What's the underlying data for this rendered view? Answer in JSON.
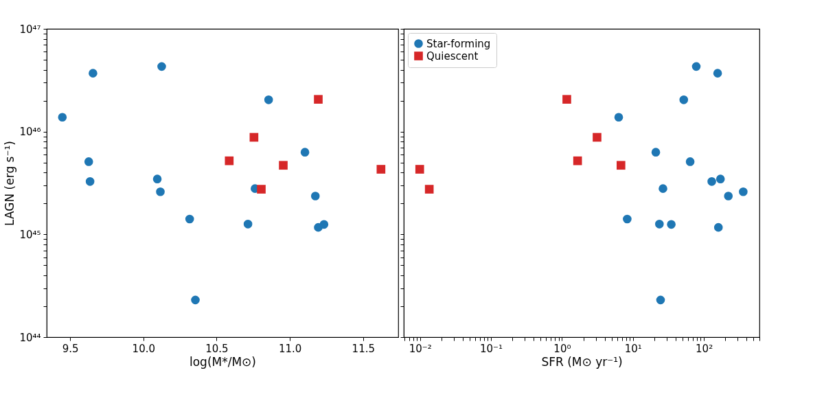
{
  "chart_data": [
    {
      "type": "scatter",
      "xlabel": "log(M*/M⊙)",
      "ylabel": "LAGN (erg s⁻¹)",
      "log": "y",
      "xlim": [
        9.34,
        11.74
      ],
      "xticks": [
        9.5,
        {
          "value": 10,
          "label": "10.0"
        },
        10.5,
        {
          "value": 11,
          "label": "11.0"
        },
        11.5
      ],
      "ylim": [
        1e+44,
        1e+47
      ],
      "yticks": [
        {
          "value": 1e+44,
          "label": "10⁴⁴"
        },
        {
          "value": 2e+44,
          "label": null
        },
        {
          "value": 3e+44,
          "label": null
        },
        {
          "value": 4e+44,
          "label": null
        },
        {
          "value": 5e+44,
          "label": null
        },
        {
          "value": 6e+44,
          "label": null
        },
        {
          "value": 7e+44,
          "label": null
        },
        {
          "value": 8e+44,
          "label": null
        },
        {
          "value": 9e+44,
          "label": null
        },
        {
          "value": 1e+45,
          "label": "10⁴⁵"
        },
        {
          "value": 2e+45,
          "label": null
        },
        {
          "value": 3e+45,
          "label": null
        },
        {
          "value": 4e+45,
          "label": null
        },
        {
          "value": 5e+45,
          "label": null
        },
        {
          "value": 6e+45,
          "label": null
        },
        {
          "value": 7e+45,
          "label": null
        },
        {
          "value": 8e+45,
          "label": null
        },
        {
          "value": 9e+45,
          "label": null
        },
        {
          "value": 1e+46,
          "label": "10⁴⁶"
        },
        {
          "value": 2e+46,
          "label": null
        },
        {
          "value": 3e+46,
          "label": null
        },
        {
          "value": 4e+46,
          "label": null
        },
        {
          "value": 5e+46,
          "label": null
        },
        {
          "value": 6e+46,
          "label": null
        },
        {
          "value": 7e+46,
          "label": null
        },
        {
          "value": 8e+46,
          "label": null
        },
        {
          "value": 9e+46,
          "label": null
        },
        {
          "value": 1e+47,
          "label": "10⁴⁷"
        }
      ],
      "series": [
        {
          "color": "#1f77b4",
          "marker": "circle",
          "x": [
            9.656,
            10.125,
            9.447,
            10.855,
            9.627,
            9.636,
            10.095,
            10.116,
            11.103,
            10.762,
            11.174,
            10.316,
            10.714,
            11.194,
            11.233,
            10.355
          ],
          "values": [
            3.7e+46,
            4.3e+46,
            1.38e+46,
            2.04e+46,
            5.1e+45,
            3.27e+45,
            3.46e+45,
            2.6e+45,
            6.3e+45,
            2.79e+45,
            2.36e+45,
            1.41e+45,
            1.26e+45,
            1.17e+45,
            1.25e+45,
            2.3e+44
          ]
        },
        {
          "color": "#d62728",
          "marker": "square",
          "x": [
            11.194,
            10.755,
            10.586,
            10.955,
            10.805,
            11.622
          ],
          "values": [
            2.06e+46,
            8.8e+45,
            5.2e+45,
            4.7e+45,
            2.75e+45,
            4.3e+45
          ]
        }
      ]
    },
    {
      "type": "scatter",
      "xlabel": "SFR (M⊙ yr⁻¹)",
      "log": "xy",
      "tick_labels": "x",
      "legend": "top left",
      "xlim": [
        0.0059,
        606
      ],
      "xticks": [
        {
          "value": 0.006,
          "label": null
        },
        {
          "value": 0.007,
          "label": null
        },
        {
          "value": 0.008,
          "label": null
        },
        {
          "value": 0.009,
          "label": null
        },
        {
          "value": 0.01,
          "label": "10⁻²"
        },
        {
          "value": 0.02,
          "label": null
        },
        {
          "value": 0.03,
          "label": null
        },
        {
          "value": 0.04,
          "label": null
        },
        {
          "value": 0.05,
          "label": null
        },
        {
          "value": 0.06,
          "label": null
        },
        {
          "value": 0.07,
          "label": null
        },
        {
          "value": 0.08,
          "label": null
        },
        {
          "value": 0.09,
          "label": null
        },
        {
          "value": 0.1,
          "label": "10⁻¹"
        },
        {
          "value": 0.2,
          "label": null
        },
        {
          "value": 0.3,
          "label": null
        },
        {
          "value": 0.4,
          "label": null
        },
        {
          "value": 0.5,
          "label": null
        },
        {
          "value": 0.6,
          "label": null
        },
        {
          "value": 0.7,
          "label": null
        },
        {
          "value": 0.8,
          "label": null
        },
        {
          "value": 0.9,
          "label": null
        },
        {
          "value": 1,
          "label": "10⁰"
        },
        {
          "value": 2,
          "label": null
        },
        {
          "value": 3,
          "label": null
        },
        {
          "value": 4,
          "label": null
        },
        {
          "value": 5,
          "label": null
        },
        {
          "value": 6,
          "label": null
        },
        {
          "value": 7,
          "label": null
        },
        {
          "value": 8,
          "label": null
        },
        {
          "value": 9,
          "label": null
        },
        {
          "value": 10,
          "label": "10¹"
        },
        {
          "value": 20,
          "label": null
        },
        {
          "value": 30,
          "label": null
        },
        {
          "value": 40,
          "label": null
        },
        {
          "value": 50,
          "label": null
        },
        {
          "value": 60,
          "label": null
        },
        {
          "value": 70,
          "label": null
        },
        {
          "value": 80,
          "label": null
        },
        {
          "value": 90,
          "label": null
        },
        {
          "value": 100,
          "label": "10²"
        },
        {
          "value": 200,
          "label": null
        },
        {
          "value": 300,
          "label": null
        },
        {
          "value": 400,
          "label": null
        },
        {
          "value": 500,
          "label": null
        },
        {
          "value": 600,
          "label": null
        }
      ],
      "ylim": [
        1e+44,
        1e+47
      ],
      "yticks": [
        {
          "value": 1e+44,
          "label": null
        },
        {
          "value": 2e+44,
          "label": null
        },
        {
          "value": 3e+44,
          "label": null
        },
        {
          "value": 4e+44,
          "label": null
        },
        {
          "value": 5e+44,
          "label": null
        },
        {
          "value": 6e+44,
          "label": null
        },
        {
          "value": 7e+44,
          "label": null
        },
        {
          "value": 8e+44,
          "label": null
        },
        {
          "value": 9e+44,
          "label": null
        },
        {
          "value": 1e+45,
          "label": null
        },
        {
          "value": 2e+45,
          "label": null
        },
        {
          "value": 3e+45,
          "label": null
        },
        {
          "value": 4e+45,
          "label": null
        },
        {
          "value": 5e+45,
          "label": null
        },
        {
          "value": 6e+45,
          "label": null
        },
        {
          "value": 7e+45,
          "label": null
        },
        {
          "value": 8e+45,
          "label": null
        },
        {
          "value": 9e+45,
          "label": null
        },
        {
          "value": 1e+46,
          "label": null
        },
        {
          "value": 2e+46,
          "label": null
        },
        {
          "value": 3e+46,
          "label": null
        },
        {
          "value": 4e+46,
          "label": null
        },
        {
          "value": 5e+46,
          "label": null
        },
        {
          "value": 6e+46,
          "label": null
        },
        {
          "value": 7e+46,
          "label": null
        },
        {
          "value": 8e+46,
          "label": null
        },
        {
          "value": 9e+46,
          "label": null
        },
        {
          "value": 1e+47,
          "label": null
        }
      ],
      "series": [
        {
          "name": "Star-forming",
          "color": "#1f77b4",
          "marker": "circle",
          "x": [
            156,
            78,
            6.3,
            52,
            64,
            129,
            171,
            358,
            21,
            26.5,
            221,
            8.3,
            23.6,
            160,
            34.7,
            24.5
          ],
          "values": [
            3.7e+46,
            4.3e+46,
            1.38e+46,
            2.04e+46,
            5.1e+45,
            3.27e+45,
            3.46e+45,
            2.6e+45,
            6.3e+45,
            2.79e+45,
            2.36e+45,
            1.41e+45,
            1.26e+45,
            1.17e+45,
            1.25e+45,
            2.3e+44
          ]
        },
        {
          "name": "Quiescent",
          "color": "#d62728",
          "marker": "square",
          "x": [
            1.17,
            3.12,
            1.66,
            6.78,
            0.0135,
            0.0099
          ],
          "values": [
            2.06e+46,
            8.8e+45,
            5.2e+45,
            4.7e+45,
            2.75e+45,
            4.3e+45
          ]
        }
      ]
    }
  ]
}
